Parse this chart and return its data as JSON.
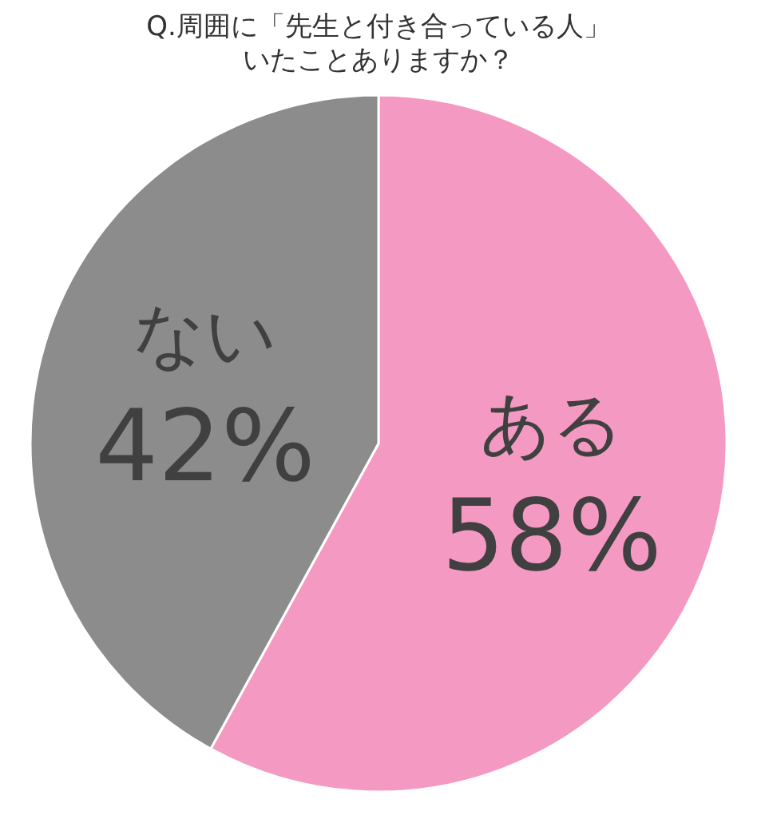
{
  "chart_data": {
    "type": "pie",
    "title": "Q.周囲に「先生と付き合っている人」",
    "subtitle": "いたことありますか？",
    "categories": [
      "ある",
      "ない"
    ],
    "values": [
      58,
      42
    ],
    "colors": [
      "#f49ac2",
      "#8c8c8c"
    ],
    "value_labels": [
      "58%",
      "42%"
    ],
    "legend": false
  }
}
